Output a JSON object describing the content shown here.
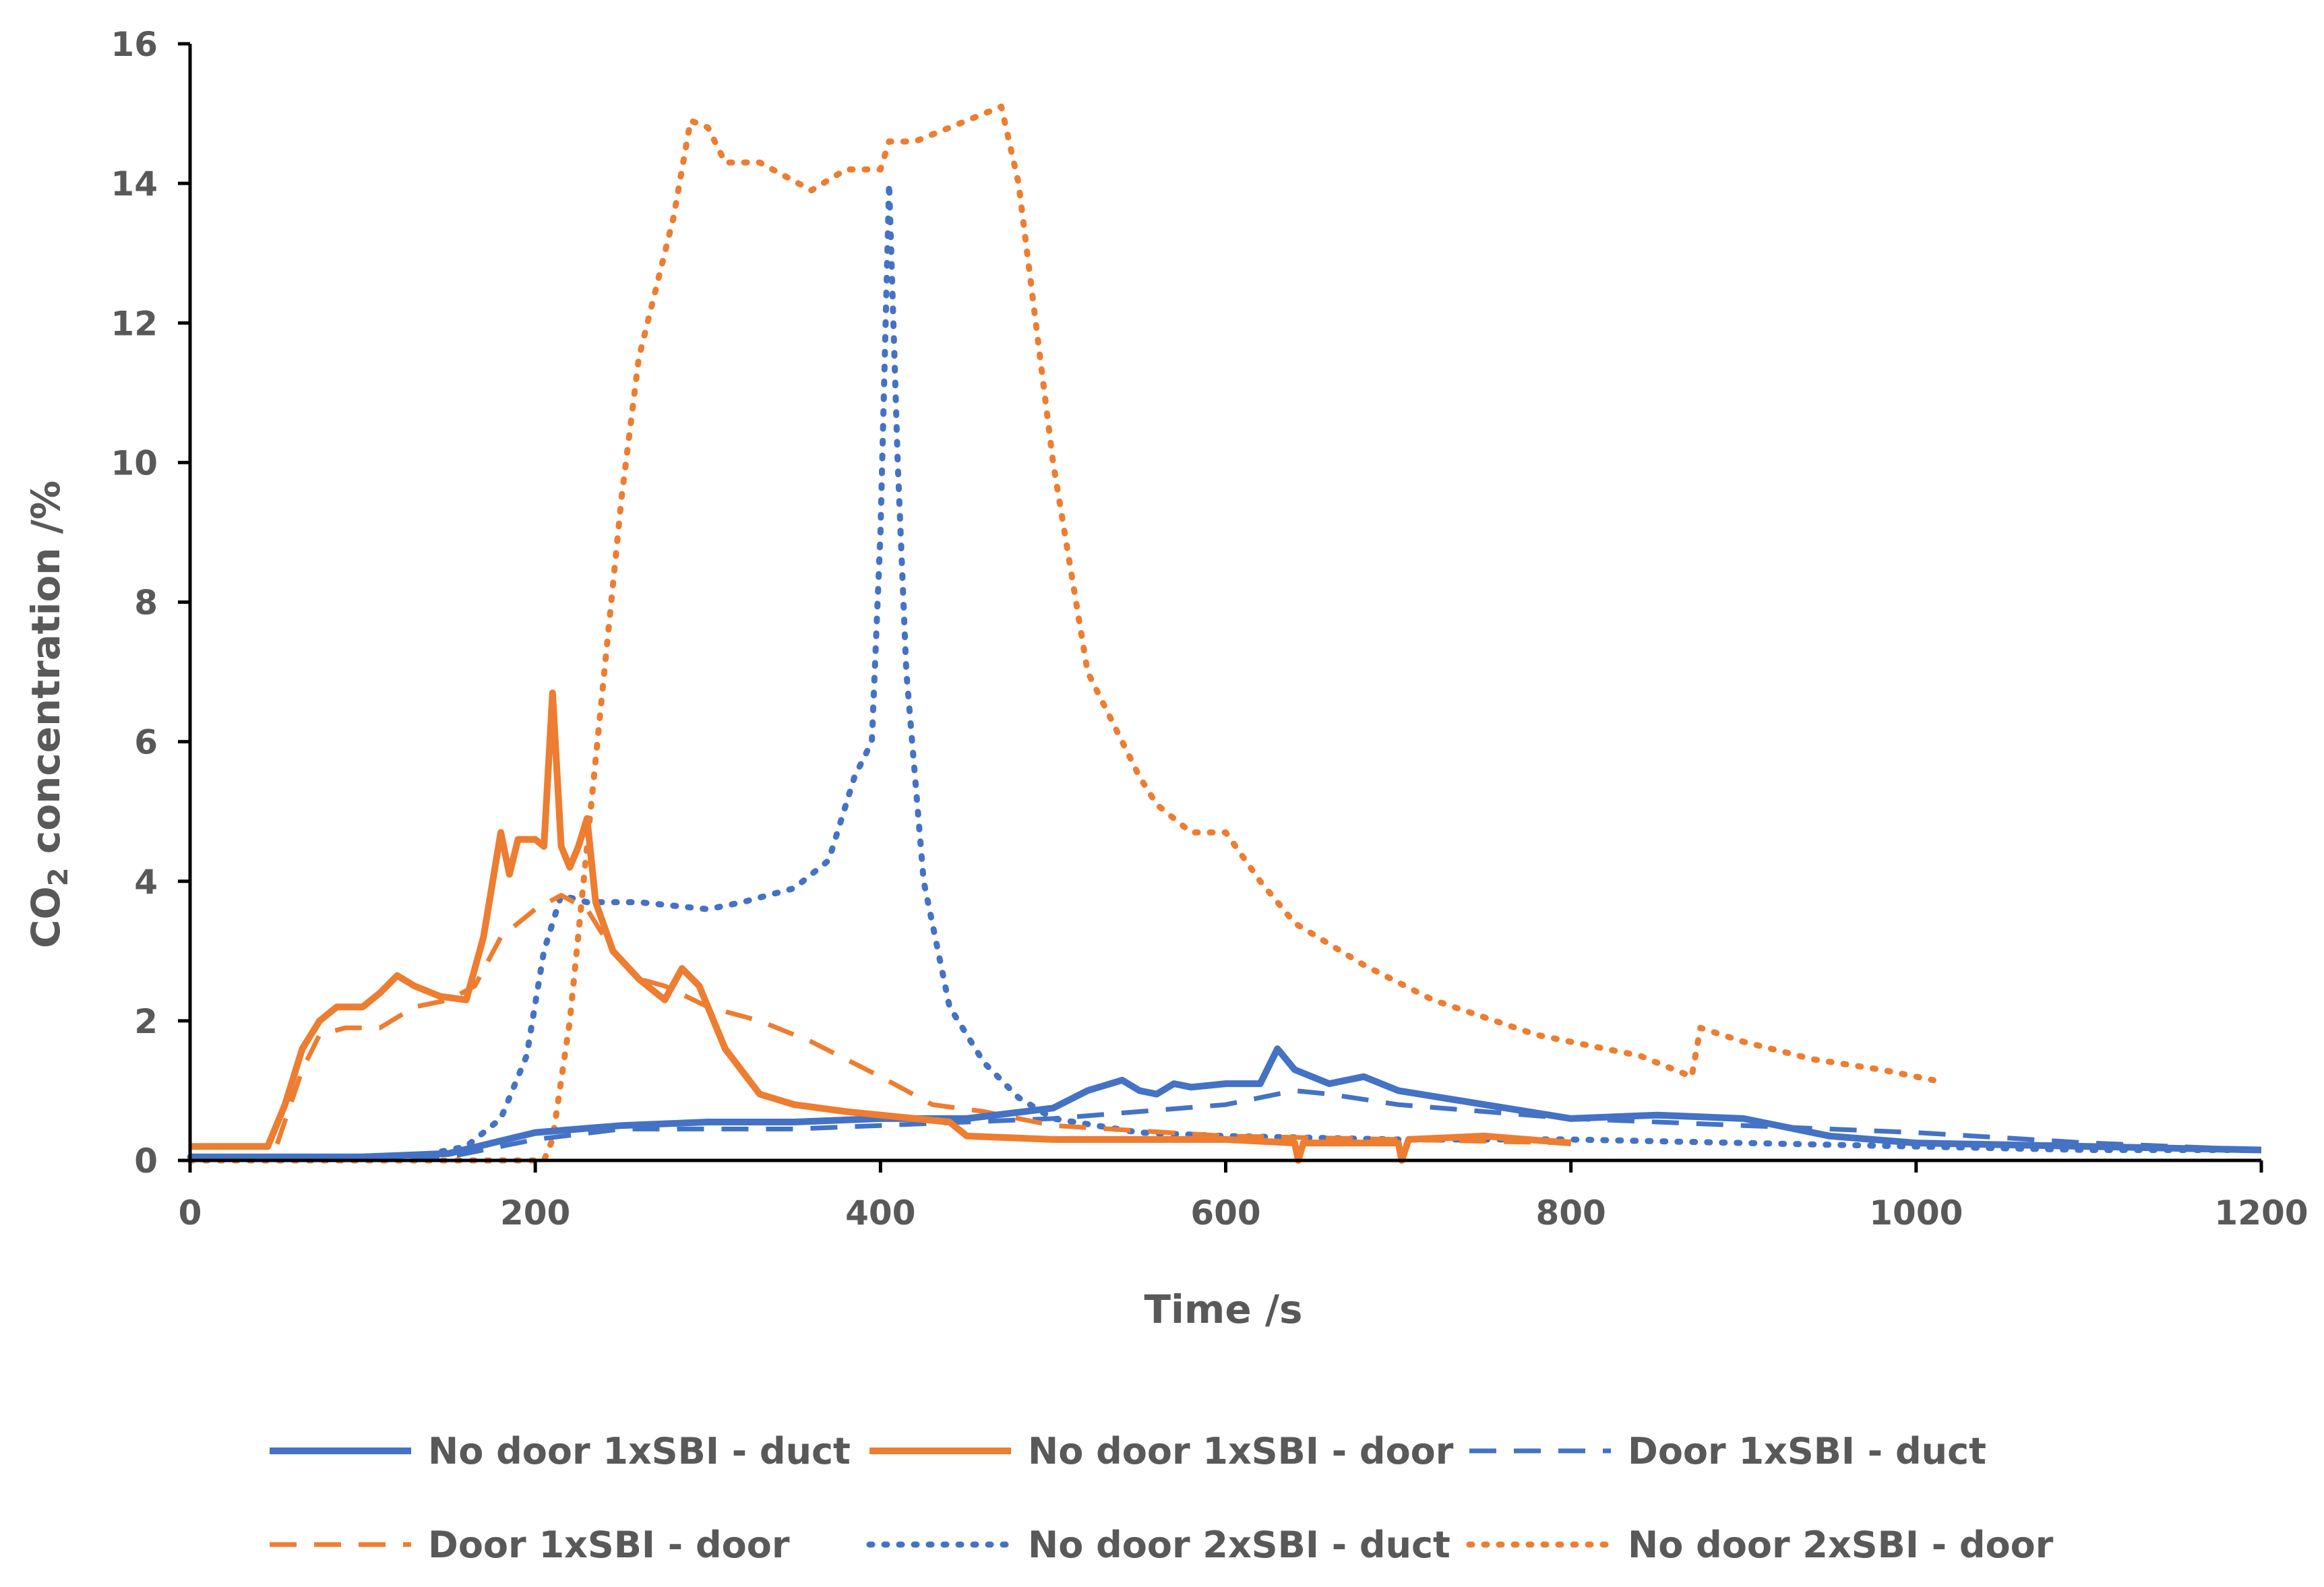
{
  "chart_data": {
    "type": "line",
    "title": "",
    "xlabel": "Time /s",
    "ylabel_main": "CO",
    "ylabel_sub": "2",
    "ylabel_rest": " concentration /%",
    "xlim": [
      0,
      1200
    ],
    "ylim": [
      0,
      16
    ],
    "x_ticks": [
      0,
      200,
      400,
      600,
      800,
      1000,
      1200
    ],
    "y_ticks": [
      0,
      2,
      4,
      6,
      8,
      10,
      12,
      14,
      16
    ],
    "grid": false,
    "legend_position": "bottom",
    "series": [
      {
        "name": "No door 1xSBI - duct",
        "color": "#4472C4",
        "style": "solid",
        "points": [
          [
            0,
            0.05
          ],
          [
            100,
            0.05
          ],
          [
            150,
            0.1
          ],
          [
            200,
            0.4
          ],
          [
            250,
            0.5
          ],
          [
            300,
            0.55
          ],
          [
            350,
            0.55
          ],
          [
            400,
            0.6
          ],
          [
            450,
            0.6
          ],
          [
            500,
            0.75
          ],
          [
            520,
            1.0
          ],
          [
            540,
            1.15
          ],
          [
            550,
            1.0
          ],
          [
            560,
            0.95
          ],
          [
            570,
            1.1
          ],
          [
            580,
            1.05
          ],
          [
            600,
            1.1
          ],
          [
            620,
            1.1
          ],
          [
            630,
            1.6
          ],
          [
            640,
            1.3
          ],
          [
            660,
            1.1
          ],
          [
            680,
            1.2
          ],
          [
            700,
            1.0
          ],
          [
            750,
            0.8
          ],
          [
            800,
            0.6
          ],
          [
            850,
            0.65
          ],
          [
            900,
            0.6
          ],
          [
            950,
            0.35
          ],
          [
            1000,
            0.25
          ],
          [
            1100,
            0.2
          ],
          [
            1200,
            0.15
          ]
        ]
      },
      {
        "name": "No door 1xSBI - door",
        "color": "#ED7D31",
        "style": "solid",
        "points": [
          [
            0,
            0.2
          ],
          [
            45,
            0.2
          ],
          [
            55,
            0.8
          ],
          [
            65,
            1.6
          ],
          [
            75,
            2.0
          ],
          [
            85,
            2.2
          ],
          [
            100,
            2.2
          ],
          [
            110,
            2.4
          ],
          [
            120,
            2.65
          ],
          [
            130,
            2.5
          ],
          [
            145,
            2.35
          ],
          [
            160,
            2.3
          ],
          [
            170,
            3.2
          ],
          [
            180,
            4.7
          ],
          [
            185,
            4.1
          ],
          [
            190,
            4.6
          ],
          [
            200,
            4.6
          ],
          [
            205,
            4.5
          ],
          [
            210,
            6.7
          ],
          [
            215,
            4.5
          ],
          [
            220,
            4.2
          ],
          [
            225,
            4.5
          ],
          [
            230,
            4.9
          ],
          [
            235,
            3.7
          ],
          [
            245,
            3.0
          ],
          [
            260,
            2.6
          ],
          [
            275,
            2.3
          ],
          [
            285,
            2.75
          ],
          [
            295,
            2.5
          ],
          [
            310,
            1.6
          ],
          [
            330,
            0.95
          ],
          [
            350,
            0.8
          ],
          [
            380,
            0.7
          ],
          [
            420,
            0.6
          ],
          [
            440,
            0.55
          ],
          [
            450,
            0.35
          ],
          [
            500,
            0.3
          ],
          [
            600,
            0.3
          ],
          [
            640,
            0.25
          ],
          [
            642,
            0.0
          ],
          [
            645,
            0.25
          ],
          [
            700,
            0.25
          ],
          [
            702,
            0.0
          ],
          [
            706,
            0.3
          ],
          [
            750,
            0.35
          ],
          [
            800,
            0.25
          ]
        ]
      },
      {
        "name": "Door 1xSBI - duct",
        "color": "#4472C4",
        "style": "dashed",
        "points": [
          [
            0,
            0.05
          ],
          [
            150,
            0.05
          ],
          [
            200,
            0.3
          ],
          [
            250,
            0.45
          ],
          [
            300,
            0.45
          ],
          [
            350,
            0.45
          ],
          [
            400,
            0.5
          ],
          [
            450,
            0.55
          ],
          [
            500,
            0.6
          ],
          [
            550,
            0.7
          ],
          [
            600,
            0.8
          ],
          [
            640,
            1.0
          ],
          [
            660,
            0.95
          ],
          [
            700,
            0.8
          ],
          [
            750,
            0.7
          ],
          [
            800,
            0.6
          ],
          [
            850,
            0.55
          ],
          [
            900,
            0.5
          ],
          [
            1000,
            0.4
          ],
          [
            1100,
            0.25
          ],
          [
            1200,
            0.15
          ]
        ]
      },
      {
        "name": "Door 1xSBI - door",
        "color": "#ED7D31",
        "style": "dashed",
        "points": [
          [
            0,
            0.2
          ],
          [
            50,
            0.2
          ],
          [
            65,
            1.3
          ],
          [
            75,
            1.8
          ],
          [
            90,
            1.9
          ],
          [
            110,
            1.9
          ],
          [
            130,
            2.2
          ],
          [
            150,
            2.3
          ],
          [
            165,
            2.5
          ],
          [
            180,
            3.2
          ],
          [
            200,
            3.6
          ],
          [
            215,
            3.8
          ],
          [
            230,
            3.6
          ],
          [
            245,
            3.0
          ],
          [
            260,
            2.6
          ],
          [
            275,
            2.5
          ],
          [
            300,
            2.2
          ],
          [
            330,
            2.0
          ],
          [
            360,
            1.7
          ],
          [
            400,
            1.2
          ],
          [
            430,
            0.8
          ],
          [
            460,
            0.7
          ],
          [
            500,
            0.5
          ],
          [
            600,
            0.35
          ],
          [
            700,
            0.3
          ],
          [
            800,
            0.25
          ]
        ]
      },
      {
        "name": "No door 2xSBI - duct",
        "color": "#4472C4",
        "style": "dotted",
        "points": [
          [
            0,
            0.05
          ],
          [
            130,
            0.05
          ],
          [
            160,
            0.2
          ],
          [
            180,
            0.6
          ],
          [
            195,
            1.5
          ],
          [
            205,
            3.0
          ],
          [
            215,
            3.8
          ],
          [
            230,
            3.7
          ],
          [
            260,
            3.7
          ],
          [
            300,
            3.6
          ],
          [
            320,
            3.7
          ],
          [
            350,
            3.9
          ],
          [
            370,
            4.3
          ],
          [
            385,
            5.5
          ],
          [
            395,
            6.0
          ],
          [
            400,
            9.0
          ],
          [
            405,
            14.0
          ],
          [
            410,
            10.0
          ],
          [
            415,
            7.0
          ],
          [
            425,
            4.0
          ],
          [
            440,
            2.2
          ],
          [
            460,
            1.4
          ],
          [
            480,
            0.9
          ],
          [
            500,
            0.6
          ],
          [
            550,
            0.4
          ],
          [
            600,
            0.35
          ],
          [
            700,
            0.3
          ],
          [
            800,
            0.3
          ],
          [
            900,
            0.25
          ],
          [
            1000,
            0.2
          ],
          [
            1100,
            0.15
          ],
          [
            1200,
            0.15
          ]
        ]
      },
      {
        "name": "No door 2xSBI - door",
        "color": "#ED7D31",
        "style": "dotted",
        "points": [
          [
            0,
            0.0
          ],
          [
            205,
            0.0
          ],
          [
            210,
            0.3
          ],
          [
            220,
            2.0
          ],
          [
            230,
            4.5
          ],
          [
            240,
            7.0
          ],
          [
            250,
            9.5
          ],
          [
            260,
            11.5
          ],
          [
            270,
            12.5
          ],
          [
            280,
            13.5
          ],
          [
            290,
            14.9
          ],
          [
            300,
            14.8
          ],
          [
            310,
            14.3
          ],
          [
            330,
            14.3
          ],
          [
            360,
            13.9
          ],
          [
            380,
            14.2
          ],
          [
            400,
            14.2
          ],
          [
            405,
            14.6
          ],
          [
            420,
            14.6
          ],
          [
            440,
            14.8
          ],
          [
            460,
            15.0
          ],
          [
            470,
            15.1
          ],
          [
            480,
            14.0
          ],
          [
            490,
            12.0
          ],
          [
            500,
            10.0
          ],
          [
            510,
            8.5
          ],
          [
            520,
            7.0
          ],
          [
            540,
            6.0
          ],
          [
            550,
            5.5
          ],
          [
            560,
            5.1
          ],
          [
            580,
            4.7
          ],
          [
            600,
            4.7
          ],
          [
            620,
            4.0
          ],
          [
            640,
            3.4
          ],
          [
            680,
            2.8
          ],
          [
            720,
            2.3
          ],
          [
            780,
            1.8
          ],
          [
            840,
            1.5
          ],
          [
            870,
            1.2
          ],
          [
            875,
            1.9
          ],
          [
            900,
            1.7
          ],
          [
            940,
            1.45
          ],
          [
            980,
            1.3
          ],
          [
            1010,
            1.15
          ]
        ]
      }
    ]
  }
}
